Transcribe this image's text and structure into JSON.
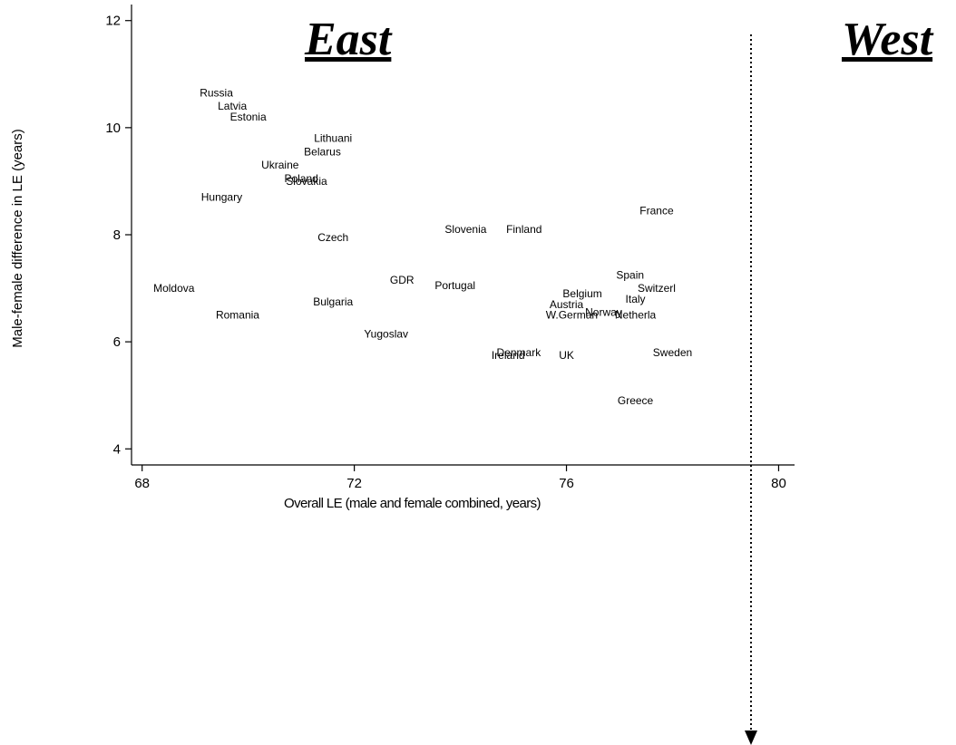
{
  "headings": {
    "east": "East",
    "west": "West"
  },
  "chart_data": {
    "type": "scatter",
    "xlabel": "Overall LE (male and female combined, years)",
    "ylabel": "Male-female difference in LE (years)",
    "xlim": [
      67.8,
      80.3
    ],
    "ylim": [
      3.7,
      12.3
    ],
    "xticks": [
      68,
      72,
      76,
      80
    ],
    "yticks": [
      4,
      6,
      8,
      10,
      12
    ],
    "grid": false,
    "marker": "label",
    "points": [
      {
        "label": "Russia",
        "x": 69.4,
        "y": 10.65
      },
      {
        "label": "Latvia",
        "x": 69.7,
        "y": 10.4
      },
      {
        "label": "Estonia",
        "x": 70.0,
        "y": 10.2
      },
      {
        "label": "Lithuani",
        "x": 71.6,
        "y": 9.8
      },
      {
        "label": "Belarus",
        "x": 71.4,
        "y": 9.55
      },
      {
        "label": "Ukraine",
        "x": 70.6,
        "y": 9.3
      },
      {
        "label": "Poland",
        "x": 71.0,
        "y": 9.05
      },
      {
        "label": "Slovakia",
        "x": 71.1,
        "y": 9.0
      },
      {
        "label": "Hungary",
        "x": 69.5,
        "y": 8.7
      },
      {
        "label": "Czech",
        "x": 71.6,
        "y": 7.95
      },
      {
        "label": "Slovenia",
        "x": 74.1,
        "y": 8.1
      },
      {
        "label": "Finland",
        "x": 75.2,
        "y": 8.1
      },
      {
        "label": "France",
        "x": 77.7,
        "y": 8.45
      },
      {
        "label": "Moldova",
        "x": 68.6,
        "y": 7.0
      },
      {
        "label": "GDR",
        "x": 72.9,
        "y": 7.15
      },
      {
        "label": "Portugal",
        "x": 73.9,
        "y": 7.05
      },
      {
        "label": "Spain",
        "x": 77.2,
        "y": 7.25
      },
      {
        "label": "Switzerl",
        "x": 77.7,
        "y": 7.0
      },
      {
        "label": "Belgium",
        "x": 76.3,
        "y": 6.9
      },
      {
        "label": "Bulgaria",
        "x": 71.6,
        "y": 6.75
      },
      {
        "label": "Italy",
        "x": 77.3,
        "y": 6.8
      },
      {
        "label": "Austria",
        "x": 76.0,
        "y": 6.7
      },
      {
        "label": "Norway",
        "x": 76.7,
        "y": 6.55
      },
      {
        "label": "Romania",
        "x": 69.8,
        "y": 6.5
      },
      {
        "label": "W.German",
        "x": 76.1,
        "y": 6.5
      },
      {
        "label": "Netherla",
        "x": 77.3,
        "y": 6.5
      },
      {
        "label": "Yugoslav",
        "x": 72.6,
        "y": 6.15
      },
      {
        "label": "Denmark",
        "x": 75.1,
        "y": 5.8
      },
      {
        "label": "Ireland",
        "x": 74.9,
        "y": 5.75
      },
      {
        "label": "UK",
        "x": 76.0,
        "y": 5.75
      },
      {
        "label": "Sweden",
        "x": 78.0,
        "y": 5.8
      },
      {
        "label": "Greece",
        "x": 77.3,
        "y": 4.9
      }
    ]
  }
}
